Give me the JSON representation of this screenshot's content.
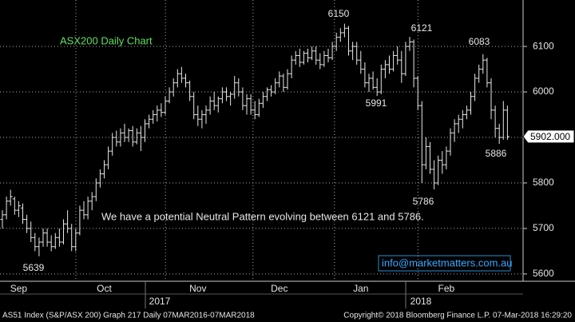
{
  "chart_data": {
    "type": "ohlc",
    "title": "ASX200 Daily Chart",
    "annotation": "We have a potential Neutral Pattern evolving between 6121 and 5786.",
    "contact": "info@marketmatters.com.au",
    "point_labels": [
      6150,
      6121,
      6083,
      5991,
      5786,
      5886,
      5639
    ],
    "last_value": {
      "value": 5902,
      "label": "5902.000"
    },
    "color": "#e8e8e8",
    "ylim": [
      5584,
      6202
    ],
    "yticks": [
      5600,
      5700,
      5800,
      5900,
      6000,
      6100
    ],
    "xticks": [
      {
        "value": 4,
        "label": "Sep"
      },
      {
        "value": 25,
        "label": "Oct"
      },
      {
        "value": 48,
        "label": "Nov"
      },
      {
        "value": 68,
        "label": "Dec"
      },
      {
        "value": 88,
        "label": "Jan"
      },
      {
        "value": 109,
        "label": "Feb"
      }
    ],
    "year_labels": [
      "2017",
      "2018"
    ],
    "grid": true,
    "footer_left": "AS51 Index (S&P/ASX 200) Graph 217  Daily 07MAR2016-07MAR2018",
    "footer_right": "Copyright© 2018 Bloomberg Finance L.P.    07-Mar-2018 16:29:20",
    "ohlc": [
      [
        5720,
        5740,
        5700,
        5730
      ],
      [
        5730,
        5770,
        5720,
        5760
      ],
      [
        5760,
        5785,
        5750,
        5770
      ],
      [
        5765,
        5770,
        5730,
        5740
      ],
      [
        5740,
        5760,
        5725,
        5750
      ],
      [
        5745,
        5755,
        5710,
        5720
      ],
      [
        5720,
        5730,
        5690,
        5700
      ],
      [
        5700,
        5715,
        5670,
        5680
      ],
      [
        5680,
        5690,
        5650,
        5660
      ],
      [
        5660,
        5680,
        5639,
        5670
      ],
      [
        5670,
        5700,
        5660,
        5690
      ],
      [
        5690,
        5700,
        5660,
        5670
      ],
      [
        5670,
        5685,
        5650,
        5660
      ],
      [
        5660,
        5690,
        5655,
        5680
      ],
      [
        5680,
        5700,
        5660,
        5670
      ],
      [
        5670,
        5720,
        5665,
        5710
      ],
      [
        5710,
        5740,
        5690,
        5700
      ],
      [
        5700,
        5710,
        5650,
        5660
      ],
      [
        5660,
        5700,
        5650,
        5690
      ],
      [
        5690,
        5750,
        5685,
        5740
      ],
      [
        5740,
        5760,
        5720,
        5730
      ],
      [
        5730,
        5770,
        5720,
        5760
      ],
      [
        5760,
        5780,
        5740,
        5770
      ],
      [
        5770,
        5810,
        5760,
        5800
      ],
      [
        5800,
        5830,
        5790,
        5820
      ],
      [
        5820,
        5850,
        5810,
        5840
      ],
      [
        5840,
        5880,
        5830,
        5870
      ],
      [
        5870,
        5910,
        5860,
        5900
      ],
      [
        5900,
        5915,
        5880,
        5890
      ],
      [
        5890,
        5920,
        5880,
        5910
      ],
      [
        5910,
        5930,
        5890,
        5900
      ],
      [
        5900,
        5920,
        5890,
        5915
      ],
      [
        5915,
        5925,
        5880,
        5890
      ],
      [
        5890,
        5920,
        5885,
        5910
      ],
      [
        5910,
        5925,
        5870,
        5900
      ],
      [
        5900,
        5940,
        5890,
        5930
      ],
      [
        5930,
        5950,
        5920,
        5940
      ],
      [
        5940,
        5960,
        5930,
        5950
      ],
      [
        5950,
        5970,
        5935,
        5960
      ],
      [
        5960,
        5975,
        5945,
        5955
      ],
      [
        5955,
        5990,
        5950,
        5980
      ],
      [
        5980,
        6010,
        5975,
        6000
      ],
      [
        6000,
        6030,
        5990,
        6020
      ],
      [
        6020,
        6050,
        6010,
        6040
      ],
      [
        6040,
        6055,
        6020,
        6030
      ],
      [
        6030,
        6040,
        6010,
        6020
      ],
      [
        6020,
        6025,
        5980,
        5990
      ],
      [
        5990,
        6000,
        5940,
        5950
      ],
      [
        5950,
        5970,
        5925,
        5940
      ],
      [
        5940,
        5960,
        5920,
        5950
      ],
      [
        5950,
        5970,
        5930,
        5960
      ],
      [
        5960,
        5990,
        5950,
        5980
      ],
      [
        5980,
        6000,
        5960,
        5970
      ],
      [
        5970,
        5990,
        5955,
        5985
      ],
      [
        5985,
        6010,
        5975,
        6000
      ],
      [
        6000,
        6010,
        5980,
        5990
      ],
      [
        5990,
        6000,
        5970,
        5995
      ],
      [
        5995,
        6035,
        5985,
        6020
      ],
      [
        6020,
        6030,
        5990,
        6000
      ],
      [
        6000,
        6010,
        5960,
        5970
      ],
      [
        5970,
        5995,
        5950,
        5985
      ],
      [
        5985,
        5995,
        5950,
        5960
      ],
      [
        5960,
        5980,
        5940,
        5950
      ],
      [
        5950,
        5985,
        5945,
        5975
      ],
      [
        5975,
        6000,
        5965,
        5990
      ],
      [
        5990,
        6010,
        5980,
        6005
      ],
      [
        6005,
        6015,
        5990,
        6000
      ],
      [
        6000,
        6030,
        5995,
        6020
      ],
      [
        6020,
        6045,
        6010,
        6035
      ],
      [
        6035,
        6040,
        6000,
        6010
      ],
      [
        6010,
        6050,
        6005,
        6040
      ],
      [
        6040,
        6080,
        6030,
        6070
      ],
      [
        6070,
        6090,
        6060,
        6080
      ],
      [
        6080,
        6095,
        6055,
        6065
      ],
      [
        6065,
        6090,
        6060,
        6085
      ],
      [
        6085,
        6095,
        6065,
        6075
      ],
      [
        6075,
        6100,
        6070,
        6090
      ],
      [
        6090,
        6100,
        6060,
        6070
      ],
      [
        6070,
        6085,
        6050,
        6060
      ],
      [
        6060,
        6090,
        6055,
        6080
      ],
      [
        6080,
        6095,
        6065,
        6075
      ],
      [
        6075,
        6110,
        6070,
        6100
      ],
      [
        6100,
        6130,
        6090,
        6120
      ],
      [
        6120,
        6140,
        6110,
        6130
      ],
      [
        6130,
        6150,
        6120,
        6140
      ],
      [
        6140,
        6145,
        6080,
        6090
      ],
      [
        6090,
        6110,
        6070,
        6100
      ],
      [
        6100,
        6110,
        6060,
        6070
      ],
      [
        6070,
        6090,
        6040,
        6050
      ],
      [
        6050,
        6065,
        6010,
        6020
      ],
      [
        6020,
        6040,
        6000,
        6030
      ],
      [
        6030,
        6045,
        6005,
        6010
      ],
      [
        6010,
        6030,
        5991,
        6000
      ],
      [
        6000,
        6060,
        5995,
        6050
      ],
      [
        6050,
        6070,
        6030,
        6060
      ],
      [
        6060,
        6080,
        6040,
        6050
      ],
      [
        6050,
        6090,
        6045,
        6080
      ],
      [
        6080,
        6100,
        6060,
        6070
      ],
      [
        6070,
        6090,
        6020,
        6040
      ],
      [
        6040,
        6110,
        6035,
        6100
      ],
      [
        6100,
        6121,
        6090,
        6110
      ],
      [
        6110,
        6115,
        6010,
        6030
      ],
      [
        6030,
        6035,
        5960,
        5970
      ],
      [
        5970,
        5980,
        5800,
        5840
      ],
      [
        5840,
        5900,
        5830,
        5880
      ],
      [
        5880,
        5890,
        5820,
        5830
      ],
      [
        5830,
        5850,
        5786,
        5800
      ],
      [
        5800,
        5860,
        5795,
        5850
      ],
      [
        5850,
        5870,
        5820,
        5840
      ],
      [
        5840,
        5880,
        5830,
        5870
      ],
      [
        5870,
        5920,
        5860,
        5910
      ],
      [
        5910,
        5940,
        5890,
        5930
      ],
      [
        5930,
        5950,
        5910,
        5940
      ],
      [
        5940,
        5960,
        5920,
        5950
      ],
      [
        5950,
        5970,
        5940,
        5960
      ],
      [
        5960,
        6000,
        5950,
        5990
      ],
      [
        5990,
        6040,
        5980,
        6030
      ],
      [
        6030,
        6060,
        6020,
        6050
      ],
      [
        6050,
        6083,
        6040,
        6070
      ],
      [
        6070,
        6075,
        6010,
        6020
      ],
      [
        6020,
        6030,
        5940,
        5960
      ],
      [
        5960,
        5970,
        5900,
        5920
      ],
      [
        5920,
        5930,
        5886,
        5900
      ],
      [
        5900,
        5980,
        5895,
        5960
      ],
      [
        5960,
        5970,
        5895,
        5902
      ]
    ]
  }
}
